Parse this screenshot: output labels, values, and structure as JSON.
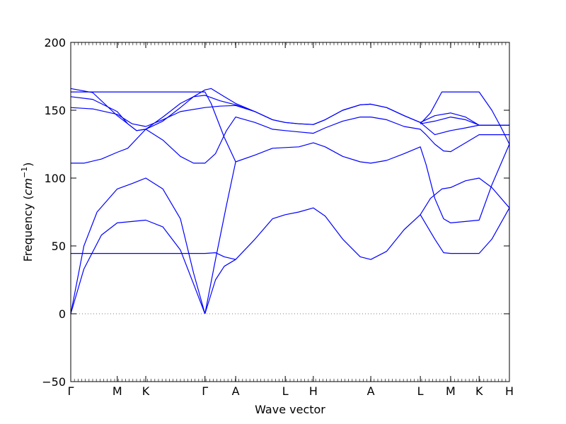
{
  "chart_data": {
    "type": "line",
    "title": "",
    "xlabel": "Wave vector",
    "ylabel": "Frequency ($cm^{-1}$)",
    "ylim": [
      -50,
      200
    ],
    "yticks": [
      -50,
      0,
      50,
      100,
      150,
      200
    ],
    "grid": false,
    "legend": "none",
    "line_color": "#0000ff",
    "zero_line": {
      "y": 0,
      "style": "dotted",
      "color": "#7f7f7f"
    },
    "x_ticks": [
      {
        "x": 0.0,
        "label": "Γ"
      },
      {
        "x": 0.106,
        "label": "M"
      },
      {
        "x": 0.171,
        "label": "K"
      },
      {
        "x": 0.306,
        "label": "Γ"
      },
      {
        "x": 0.376,
        "label": "A"
      },
      {
        "x": 0.489,
        "label": "L"
      },
      {
        "x": 0.553,
        "label": "H"
      },
      {
        "x": 0.684,
        "label": "A"
      },
      {
        "x": 0.797,
        "label": "L"
      },
      {
        "x": 0.866,
        "label": "M"
      },
      {
        "x": 0.931,
        "label": "K"
      },
      {
        "x": 1.0,
        "label": "H"
      }
    ],
    "series": [
      {
        "values": [
          [
            0,
            0
          ],
          [
            0.03,
            50
          ],
          [
            0.06,
            75
          ],
          [
            0.106,
            92
          ],
          [
            0.14,
            96
          ],
          [
            0.171,
            100
          ],
          [
            0.21,
            92
          ],
          [
            0.25,
            70
          ],
          [
            0.28,
            30
          ],
          [
            0.306,
            0
          ]
        ]
      },
      {
        "values": [
          [
            0,
            0
          ],
          [
            0.03,
            33
          ],
          [
            0.07,
            58
          ],
          [
            0.106,
            67
          ],
          [
            0.14,
            68
          ],
          [
            0.171,
            69
          ],
          [
            0.21,
            64
          ],
          [
            0.25,
            47
          ],
          [
            0.28,
            22
          ],
          [
            0.306,
            0
          ]
        ]
      },
      {
        "values": [
          [
            0,
            44.5
          ],
          [
            0.106,
            44.5
          ],
          [
            0.171,
            44.5
          ],
          [
            0.306,
            44.5
          ],
          [
            0.33,
            45
          ],
          [
            0.35,
            42
          ],
          [
            0.376,
            40
          ],
          [
            0.42,
            55
          ],
          [
            0.46,
            70
          ],
          [
            0.489,
            73
          ],
          [
            0.52,
            75
          ],
          [
            0.553,
            78
          ],
          [
            0.58,
            72
          ],
          [
            0.62,
            55
          ],
          [
            0.66,
            42
          ],
          [
            0.684,
            40
          ],
          [
            0.72,
            46
          ],
          [
            0.76,
            62
          ],
          [
            0.797,
            73
          ],
          [
            0.83,
            55
          ],
          [
            0.85,
            45
          ],
          [
            0.866,
            44.5
          ],
          [
            0.931,
            44.5
          ],
          [
            0.96,
            55
          ],
          [
            1.0,
            78
          ]
        ]
      },
      {
        "values": [
          [
            0.306,
            0
          ],
          [
            0.33,
            25
          ],
          [
            0.35,
            35
          ],
          [
            0.376,
            40
          ]
        ]
      },
      {
        "values": [
          [
            0.306,
            0
          ],
          [
            0.33,
            40
          ],
          [
            0.355,
            80
          ],
          [
            0.376,
            112
          ],
          [
            0.42,
            117
          ],
          [
            0.46,
            122
          ],
          [
            0.489,
            122.5
          ],
          [
            0.52,
            123
          ],
          [
            0.553,
            126
          ],
          [
            0.58,
            123
          ],
          [
            0.62,
            116
          ],
          [
            0.66,
            112
          ],
          [
            0.684,
            111
          ],
          [
            0.72,
            113
          ],
          [
            0.76,
            118
          ],
          [
            0.797,
            123
          ],
          [
            0.81,
            110
          ],
          [
            0.83,
            85
          ],
          [
            0.85,
            70
          ],
          [
            0.866,
            67
          ],
          [
            0.9,
            68
          ],
          [
            0.931,
            69
          ],
          [
            0.96,
            95
          ],
          [
            1.0,
            125
          ]
        ]
      },
      {
        "values": [
          [
            0.797,
            73
          ],
          [
            0.82,
            85
          ],
          [
            0.846,
            92
          ],
          [
            0.866,
            93
          ],
          [
            0.9,
            98
          ],
          [
            0.931,
            100
          ],
          [
            0.96,
            93
          ],
          [
            1.0,
            78
          ]
        ]
      },
      {
        "values": [
          [
            0,
            111
          ],
          [
            0.03,
            111
          ],
          [
            0.07,
            114
          ],
          [
            0.106,
            119
          ],
          [
            0.13,
            122
          ],
          [
            0.171,
            136
          ],
          [
            0.21,
            128
          ],
          [
            0.25,
            116
          ],
          [
            0.28,
            111
          ],
          [
            0.306,
            111
          ],
          [
            0.33,
            118
          ],
          [
            0.355,
            135
          ],
          [
            0.376,
            145
          ],
          [
            0.42,
            141
          ],
          [
            0.46,
            136
          ],
          [
            0.489,
            135
          ],
          [
            0.52,
            134
          ],
          [
            0.553,
            133
          ],
          [
            0.58,
            137
          ],
          [
            0.62,
            142
          ],
          [
            0.66,
            145
          ],
          [
            0.684,
            145
          ],
          [
            0.72,
            143
          ],
          [
            0.76,
            138
          ],
          [
            0.797,
            136
          ],
          [
            0.81,
            132
          ],
          [
            0.83,
            125
          ],
          [
            0.85,
            120
          ],
          [
            0.866,
            119.5
          ],
          [
            0.9,
            126
          ],
          [
            0.931,
            132
          ],
          [
            1.0,
            132
          ]
        ]
      },
      {
        "values": [
          [
            0,
            152
          ],
          [
            0.05,
            151
          ],
          [
            0.106,
            147
          ],
          [
            0.14,
            140
          ],
          [
            0.171,
            138
          ],
          [
            0.21,
            143
          ],
          [
            0.25,
            149
          ],
          [
            0.306,
            152
          ],
          [
            0.34,
            153
          ],
          [
            0.376,
            153.5
          ],
          [
            0.42,
            149
          ],
          [
            0.46,
            143
          ],
          [
            0.489,
            141
          ],
          [
            0.52,
            140
          ],
          [
            0.553,
            139.5
          ],
          [
            0.58,
            143
          ],
          [
            0.62,
            150
          ],
          [
            0.66,
            154
          ],
          [
            0.684,
            154.5
          ],
          [
            0.72,
            152
          ],
          [
            0.76,
            146
          ],
          [
            0.797,
            141
          ],
          [
            0.83,
            146
          ],
          [
            0.866,
            148
          ],
          [
            0.9,
            145
          ],
          [
            0.931,
            139
          ],
          [
            1.0,
            139
          ]
        ]
      },
      {
        "values": [
          [
            0,
            160
          ],
          [
            0.05,
            158
          ],
          [
            0.106,
            149
          ],
          [
            0.13,
            140
          ],
          [
            0.15,
            135
          ],
          [
            0.171,
            136
          ],
          [
            0.21,
            145
          ],
          [
            0.25,
            155
          ],
          [
            0.28,
            160
          ],
          [
            0.306,
            161
          ],
          [
            0.34,
            157
          ],
          [
            0.376,
            154
          ],
          [
            0.42,
            149
          ],
          [
            0.46,
            143
          ],
          [
            0.489,
            141
          ],
          [
            0.52,
            140
          ],
          [
            0.553,
            139.5
          ],
          [
            0.58,
            143
          ],
          [
            0.62,
            150
          ],
          [
            0.66,
            154
          ],
          [
            0.684,
            154.5
          ],
          [
            0.72,
            152
          ],
          [
            0.76,
            146
          ],
          [
            0.797,
            141
          ],
          [
            0.83,
            132
          ],
          [
            0.866,
            135
          ],
          [
            0.9,
            137
          ],
          [
            0.931,
            139
          ],
          [
            1.0,
            139
          ]
        ]
      },
      {
        "values": [
          [
            0,
            166
          ],
          [
            0.05,
            163
          ],
          [
            0.106,
            146
          ],
          [
            0.13,
            140
          ],
          [
            0.15,
            135
          ],
          [
            0.171,
            136
          ],
          [
            0.21,
            142
          ],
          [
            0.25,
            152
          ],
          [
            0.28,
            160
          ],
          [
            0.306,
            165
          ],
          [
            0.32,
            166
          ],
          [
            0.35,
            160
          ],
          [
            0.376,
            155
          ],
          [
            0.42,
            149
          ]
        ]
      },
      {
        "values": [
          [
            0,
            163.5
          ],
          [
            0.106,
            163.5
          ],
          [
            0.171,
            163.5
          ],
          [
            0.306,
            163.5
          ],
          [
            0.32,
            155
          ],
          [
            0.35,
            130
          ],
          [
            0.376,
            112
          ]
        ]
      },
      {
        "values": [
          [
            0.797,
            140
          ],
          [
            0.82,
            148
          ],
          [
            0.846,
            163.5
          ],
          [
            0.866,
            163.5
          ],
          [
            0.931,
            163.5
          ],
          [
            0.96,
            150
          ],
          [
            0.98,
            138
          ],
          [
            1.0,
            125
          ]
        ]
      },
      {
        "values": [
          [
            0.797,
            140
          ],
          [
            0.83,
            142
          ],
          [
            0.866,
            145
          ],
          [
            0.9,
            143
          ],
          [
            0.931,
            139
          ],
          [
            1.0,
            139
          ]
        ]
      }
    ]
  }
}
